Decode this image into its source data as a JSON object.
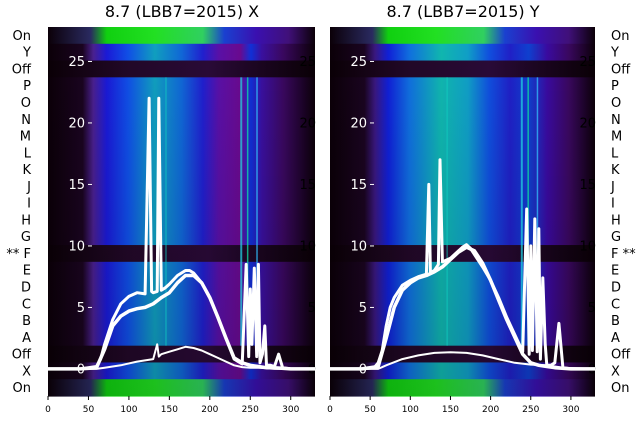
{
  "chart_data": [
    {
      "type": "heatmap",
      "title": "8.7 (LBB7=2015) X",
      "x_ticks": [
        0,
        50,
        100,
        150,
        200,
        250,
        300
      ],
      "xlim": [
        0,
        330
      ],
      "row_labels": [
        "On",
        "Y",
        "Off",
        "P",
        "O",
        "N",
        "M",
        "L",
        "K",
        "J",
        "I",
        "H",
        "G",
        "F",
        "E",
        "D",
        "C",
        "B",
        "A",
        "Off",
        "X",
        "On"
      ],
      "marked_row": "F",
      "marker": "**",
      "overlay_yticks": [
        0,
        5,
        10,
        15,
        20,
        25
      ],
      "overlay_ylim": [
        -2.2,
        27.8
      ],
      "series": [
        {
          "name": "",
          "x": [
            0,
            40,
            60,
            65,
            70,
            80,
            90,
            100,
            110,
            120,
            125,
            128,
            130,
            135,
            137,
            140,
            145,
            150,
            160,
            165,
            170,
            175,
            180,
            190,
            200,
            210,
            220,
            230,
            240,
            245,
            248,
            250,
            252,
            255,
            258,
            260,
            262,
            265,
            268,
            270,
            275,
            280,
            285,
            290,
            300,
            315,
            330
          ],
          "values": [
            0,
            0,
            0.2,
            0.8,
            2,
            4,
            5.3,
            5.9,
            6.2,
            6.1,
            22,
            6.3,
            6.2,
            6.3,
            22,
            6.4,
            6.6,
            6.9,
            7.6,
            7.8,
            8,
            8,
            7.8,
            7,
            5.8,
            4.2,
            2.5,
            0.8,
            0.4,
            8.5,
            1,
            6.5,
            2,
            8.2,
            1,
            8.5,
            0.5,
            1.2,
            3.5,
            0.3,
            0.3,
            0.2,
            1.2,
            0.1,
            0,
            0,
            0
          ]
        },
        {
          "name": "",
          "x": [
            0,
            40,
            60,
            70,
            80,
            90,
            100,
            110,
            120,
            130,
            140,
            150,
            160,
            170,
            180,
            190,
            200,
            210,
            220,
            230,
            240,
            250,
            260,
            270,
            280,
            300,
            330
          ],
          "values": [
            0,
            0,
            0.1,
            1.6,
            3.5,
            4.3,
            4.7,
            4.9,
            5,
            5.3,
            5.8,
            6.2,
            7,
            7.6,
            7.6,
            7,
            5.8,
            4.2,
            2.5,
            0.9,
            0.5,
            0.3,
            0.2,
            0.1,
            0.1,
            0,
            0
          ]
        },
        {
          "name": "",
          "x": [
            0,
            40,
            60,
            70,
            90,
            110,
            130,
            135,
            137,
            140,
            150,
            160,
            170,
            180,
            190,
            200,
            210,
            220,
            230,
            240,
            250,
            260,
            270,
            280,
            300,
            330
          ],
          "values": [
            0,
            0,
            0,
            0.1,
            0.3,
            0.6,
            0.8,
            2,
            1,
            1.2,
            1.4,
            1.6,
            1.8,
            1.7,
            1.5,
            1.2,
            0.9,
            0.6,
            0.3,
            0.15,
            0.1,
            0.1,
            0.05,
            0,
            0,
            0
          ]
        }
      ],
      "colors": {
        "curve": "#ffffff"
      }
    },
    {
      "type": "heatmap",
      "title": "8.7 (LBB7=2015) Y",
      "x_ticks": [
        0,
        50,
        100,
        150,
        200,
        250,
        300
      ],
      "xlim": [
        0,
        330
      ],
      "row_labels": [
        "On",
        "Y",
        "Off",
        "P",
        "O",
        "N",
        "M",
        "L",
        "K",
        "J",
        "I",
        "H",
        "G",
        "F",
        "E",
        "D",
        "C",
        "B",
        "A",
        "Off",
        "X",
        "On"
      ],
      "marked_row": "F",
      "marker": "**",
      "overlay_yticks": [
        0,
        5,
        10,
        15,
        20,
        25
      ],
      "overlay_ylim": [
        -2.2,
        27.8
      ],
      "series": [
        {
          "name": "",
          "x": [
            0,
            40,
            55,
            60,
            65,
            70,
            75,
            80,
            90,
            100,
            110,
            120,
            123,
            125,
            127,
            130,
            135,
            137,
            140,
            150,
            160,
            165,
            170,
            175,
            180,
            190,
            200,
            210,
            220,
            230,
            240,
            245,
            248,
            250,
            252,
            255,
            258,
            260,
            262,
            265,
            268,
            270,
            275,
            280,
            285,
            290,
            300,
            315,
            330
          ],
          "values": [
            0,
            0,
            0.1,
            0.5,
            1.5,
            3.5,
            5,
            5.8,
            6.8,
            7.2,
            7.5,
            7.7,
            15,
            7.8,
            7.9,
            8,
            8.5,
            17,
            8.7,
            9,
            9.6,
            9.9,
            10.1,
            9.8,
            9.3,
            8.3,
            7.2,
            5.8,
            4.2,
            2.8,
            1.4,
            13,
            1.2,
            10,
            1.5,
            12.2,
            1.4,
            11.4,
            0.8,
            7.4,
            2,
            0.3,
            0.3,
            0.5,
            3.7,
            0.1,
            0,
            0,
            0
          ]
        },
        {
          "name": "",
          "x": [
            0,
            40,
            60,
            70,
            80,
            90,
            100,
            110,
            120,
            130,
            140,
            150,
            160,
            170,
            180,
            190,
            200,
            210,
            220,
            230,
            240,
            250,
            260,
            270,
            280,
            300,
            330
          ],
          "values": [
            0,
            0,
            0.2,
            2.5,
            5,
            6.4,
            7,
            7.4,
            7.6,
            7.9,
            8.3,
            8.9,
            9.5,
            9.9,
            9.6,
            8.6,
            7.2,
            5.6,
            4,
            2.6,
            1.2,
            0.5,
            0.3,
            0.2,
            0.1,
            0,
            0
          ]
        },
        {
          "name": "",
          "x": [
            0,
            40,
            60,
            70,
            90,
            110,
            130,
            150,
            170,
            190,
            210,
            230,
            250,
            270,
            290,
            330
          ],
          "values": [
            0,
            0,
            0,
            0.3,
            0.8,
            1.1,
            1.3,
            1.35,
            1.3,
            1.1,
            0.8,
            0.5,
            0.35,
            0.3,
            0.1,
            0
          ]
        }
      ],
      "colors": {
        "curve": "#ffffff"
      }
    }
  ]
}
